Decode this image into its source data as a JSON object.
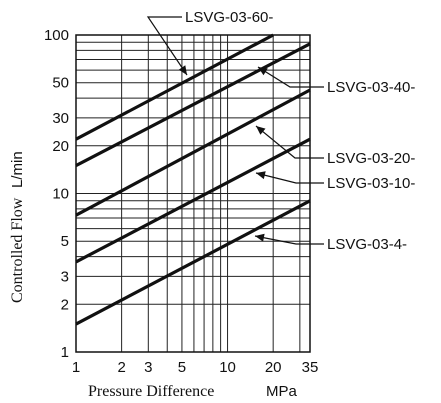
{
  "chart_data": {
    "type": "line",
    "xscale": "log",
    "yscale": "log",
    "xlim": [
      1,
      35
    ],
    "ylim": [
      1,
      100
    ],
    "grid": true,
    "xlabel": "Pressure Difference",
    "xunit": "MPa",
    "ylabel": "Controlled Flow",
    "yunit": "L/min",
    "x_ticks": [
      1,
      2,
      3,
      5,
      10,
      20,
      35
    ],
    "x_tick_labels": [
      "1",
      "2",
      "3",
      "5",
      "10",
      "20",
      "35"
    ],
    "y_ticks": [
      1,
      2,
      3,
      5,
      10,
      20,
      30,
      50,
      100
    ],
    "y_tick_labels": [
      "1",
      "2",
      "3",
      "5",
      "10",
      "20",
      "30",
      "50",
      "100"
    ],
    "series": [
      {
        "name": "LSVG-03-60-",
        "x": [
          1,
          20
        ],
        "y": [
          22,
          100
        ],
        "label_y": 18
      },
      {
        "name": "LSVG-03-40-",
        "x": [
          1,
          35
        ],
        "y": [
          15,
          88
        ],
        "label_y": 56
      },
      {
        "name": "LSVG-03-20-",
        "x": [
          1,
          35
        ],
        "y": [
          7.3,
          45
        ],
        "label_y": 29
      },
      {
        "name": "LSVG-03-10-",
        "x": [
          1,
          35
        ],
        "y": [
          3.7,
          22
        ],
        "label_y": 14
      },
      {
        "name": "LSVG-03-4-",
        "x": [
          1,
          35
        ],
        "y": [
          1.5,
          9
        ],
        "label_y": 6
      }
    ]
  }
}
